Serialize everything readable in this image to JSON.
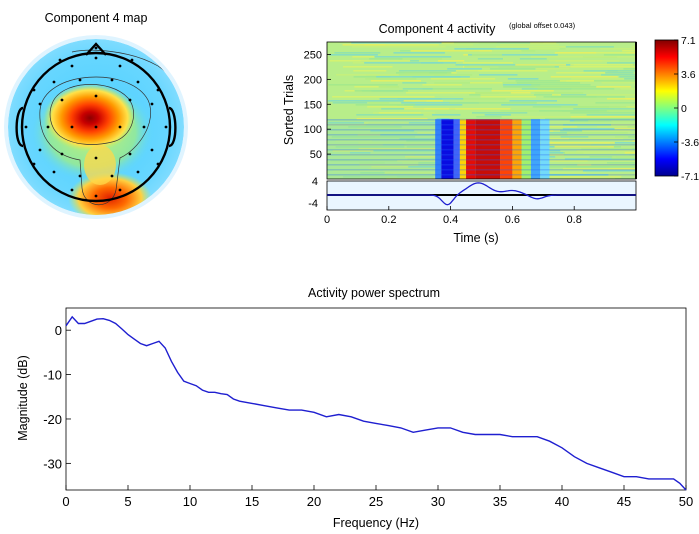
{
  "topomap": {
    "title": "Component 4 map"
  },
  "erpimage": {
    "title": "Component 4 activity",
    "subtitle": "(global offset 0.043)",
    "ylabel": "Sorted Trials",
    "xlabel": "Time (s)",
    "trial_ticks": [
      "50",
      "100",
      "150",
      "200",
      "250"
    ],
    "trace_ticks": [
      "4",
      "-4"
    ],
    "time_ticks": [
      "0",
      "0.2",
      "0.4",
      "0.6",
      "0.8"
    ],
    "colorbar_ticks": [
      "7.1",
      "3.6",
      "0",
      "-3.6",
      "-7.1"
    ]
  },
  "chart_data": [
    {
      "type": "heatmap",
      "title": "Component 4 activity",
      "subtitle": "(global offset 0.043)",
      "xlabel": "Time (s)",
      "ylabel": "Sorted Trials",
      "xlim": [
        0,
        1.0
      ],
      "ylim": [
        0,
        275
      ],
      "colorbar_range": [
        -7.1,
        7.1
      ],
      "xticks": [
        0,
        0.2,
        0.4,
        0.6,
        0.8
      ],
      "yticks": [
        50,
        100,
        150,
        200,
        250
      ],
      "colormap": "jet"
    },
    {
      "type": "line",
      "title": "Activity power spectrum",
      "xlabel": "Frequency (Hz)",
      "ylabel": "Magnitude (dB)",
      "xlim": [
        0,
        50
      ],
      "ylim": [
        -36,
        5
      ],
      "xticks": [
        0,
        5,
        10,
        15,
        20,
        25,
        30,
        35,
        40,
        45,
        50
      ],
      "yticks": [
        0,
        -10,
        -20,
        -30
      ],
      "grid": false,
      "series": [
        {
          "color": "#1f1fd0",
          "x": [
            0,
            0.5,
            1,
            1.5,
            2,
            2.5,
            3,
            3.5,
            4,
            4.5,
            5,
            5.5,
            6,
            6.5,
            7,
            7.5,
            8,
            8.5,
            9,
            9.5,
            10,
            10.5,
            11,
            11.5,
            12,
            12.5,
            13,
            13.5,
            14,
            15,
            16,
            17,
            18,
            19,
            20,
            21,
            22,
            23,
            24,
            25,
            26,
            27,
            28,
            29,
            30,
            31,
            32,
            33,
            34,
            35,
            36,
            37,
            38,
            39,
            40,
            41,
            42,
            43,
            44,
            45,
            46,
            47,
            48,
            49,
            49.5,
            50
          ],
          "y": [
            1,
            3,
            1.5,
            1.5,
            2,
            2.5,
            2.6,
            2.2,
            1.5,
            0.3,
            -1,
            -2,
            -3,
            -3.5,
            -3,
            -2.5,
            -4,
            -7,
            -9.5,
            -11.5,
            -12,
            -12.5,
            -13.5,
            -14,
            -14,
            -14.3,
            -14.5,
            -15.5,
            -16,
            -16.5,
            -17,
            -17.5,
            -18,
            -18,
            -18.5,
            -19.5,
            -19,
            -19.5,
            -20.5,
            -21,
            -21.5,
            -22,
            -23,
            -22.5,
            -22,
            -22,
            -23,
            -23.5,
            -23.5,
            -23.5,
            -24,
            -24,
            -24,
            -25,
            -26.5,
            -28.5,
            -30,
            -31,
            -32,
            -33,
            -33,
            -33.5,
            -33.5,
            -33.5,
            -34.5,
            -36
          ]
        }
      ]
    }
  ],
  "spectrum": {
    "title": "Activity power spectrum",
    "xlabel": "Frequency (Hz)",
    "ylabel": "Magnitude (dB)",
    "xticks": [
      "0",
      "5",
      "10",
      "15",
      "20",
      "25",
      "30",
      "35",
      "40",
      "45",
      "50"
    ],
    "yticks": [
      "0",
      "-10",
      "-20",
      "-30"
    ]
  }
}
